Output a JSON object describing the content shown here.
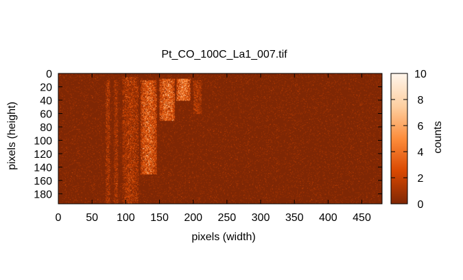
{
  "chart_data": {
    "type": "heatmap",
    "title": "Pt_CO_100C_La1_007.tif",
    "xlabel": "pixels (width)",
    "ylabel": "pixels (height)",
    "colorbar_label": "counts",
    "xlim": [
      0,
      480
    ],
    "ylim": [
      0,
      195
    ],
    "y_axis_inverted": true,
    "x_ticks": [
      0,
      50,
      100,
      150,
      200,
      250,
      300,
      350,
      400,
      450
    ],
    "y_ticks": [
      0,
      20,
      40,
      60,
      80,
      100,
      120,
      140,
      160,
      180
    ],
    "colorbar_range": [
      0,
      10
    ],
    "colorbar_ticks": [
      0,
      2,
      4,
      6,
      8,
      10
    ],
    "colormap": [
      "#7f2704",
      "#d94801",
      "#fd8d3c",
      "#fdd0a2",
      "#fff5eb"
    ],
    "grid": false,
    "features": [
      {
        "description": "faint vertical streak",
        "x_range": [
          70,
          76
        ],
        "y_range": [
          10,
          195
        ],
        "mean_counts": 1.0
      },
      {
        "description": "faint vertical streak",
        "x_range": [
          82,
          88
        ],
        "y_range": [
          10,
          195
        ],
        "mean_counts": 0.8
      },
      {
        "description": "vertical streak",
        "x_range": [
          95,
          118
        ],
        "y_range": [
          5,
          195
        ],
        "mean_counts": 1.2
      },
      {
        "description": "bright curved band",
        "x_range": [
          122,
          145
        ],
        "y_range": [
          10,
          150
        ],
        "mean_counts": 3.0
      },
      {
        "description": "bright diffuse spot",
        "x_range": [
          150,
          172
        ],
        "y_range": [
          8,
          70
        ],
        "mean_counts": 3.5
      },
      {
        "description": "bright diffuse spot",
        "x_range": [
          175,
          195
        ],
        "y_range": [
          8,
          40
        ],
        "mean_counts": 4.0
      },
      {
        "description": "faint vertical streak",
        "x_range": [
          200,
          212
        ],
        "y_range": [
          10,
          60
        ],
        "mean_counts": 1.2
      }
    ]
  }
}
